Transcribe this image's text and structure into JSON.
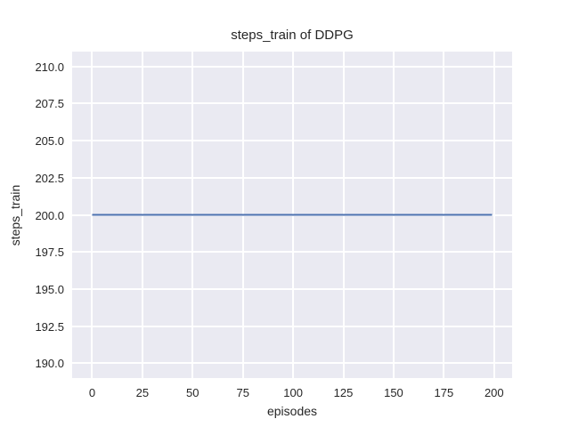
{
  "chart_data": {
    "type": "line",
    "title": "steps_train of DDPG",
    "xlabel": "episodes",
    "ylabel": "steps_train",
    "series": [
      {
        "name": "steps_train",
        "color": "#4c72b0",
        "x": [
          0,
          199
        ],
        "y": [
          200,
          200
        ],
        "note": "constant value 200 for every episode from 0 to 199"
      }
    ],
    "xlim": [
      -9.95,
      208.95
    ],
    "ylim": [
      189,
      211
    ],
    "xticks": [
      0,
      25,
      50,
      75,
      100,
      125,
      150,
      175,
      200
    ],
    "xtick_labels": [
      "0",
      "25",
      "50",
      "75",
      "100",
      "125",
      "150",
      "175",
      "200"
    ],
    "yticks": [
      190.0,
      192.5,
      195.0,
      197.5,
      200.0,
      202.5,
      205.0,
      207.5,
      210.0
    ],
    "ytick_labels": [
      "190.0",
      "192.5",
      "195.0",
      "197.5",
      "200.0",
      "202.5",
      "205.0",
      "207.5",
      "210.0"
    ],
    "grid": true,
    "legend": false,
    "line_width": 2,
    "style": {
      "figure_bg": "#ffffff",
      "plot_bg": "#eaeaf2",
      "grid_color": "#ffffff",
      "text_color": "#262626"
    }
  }
}
